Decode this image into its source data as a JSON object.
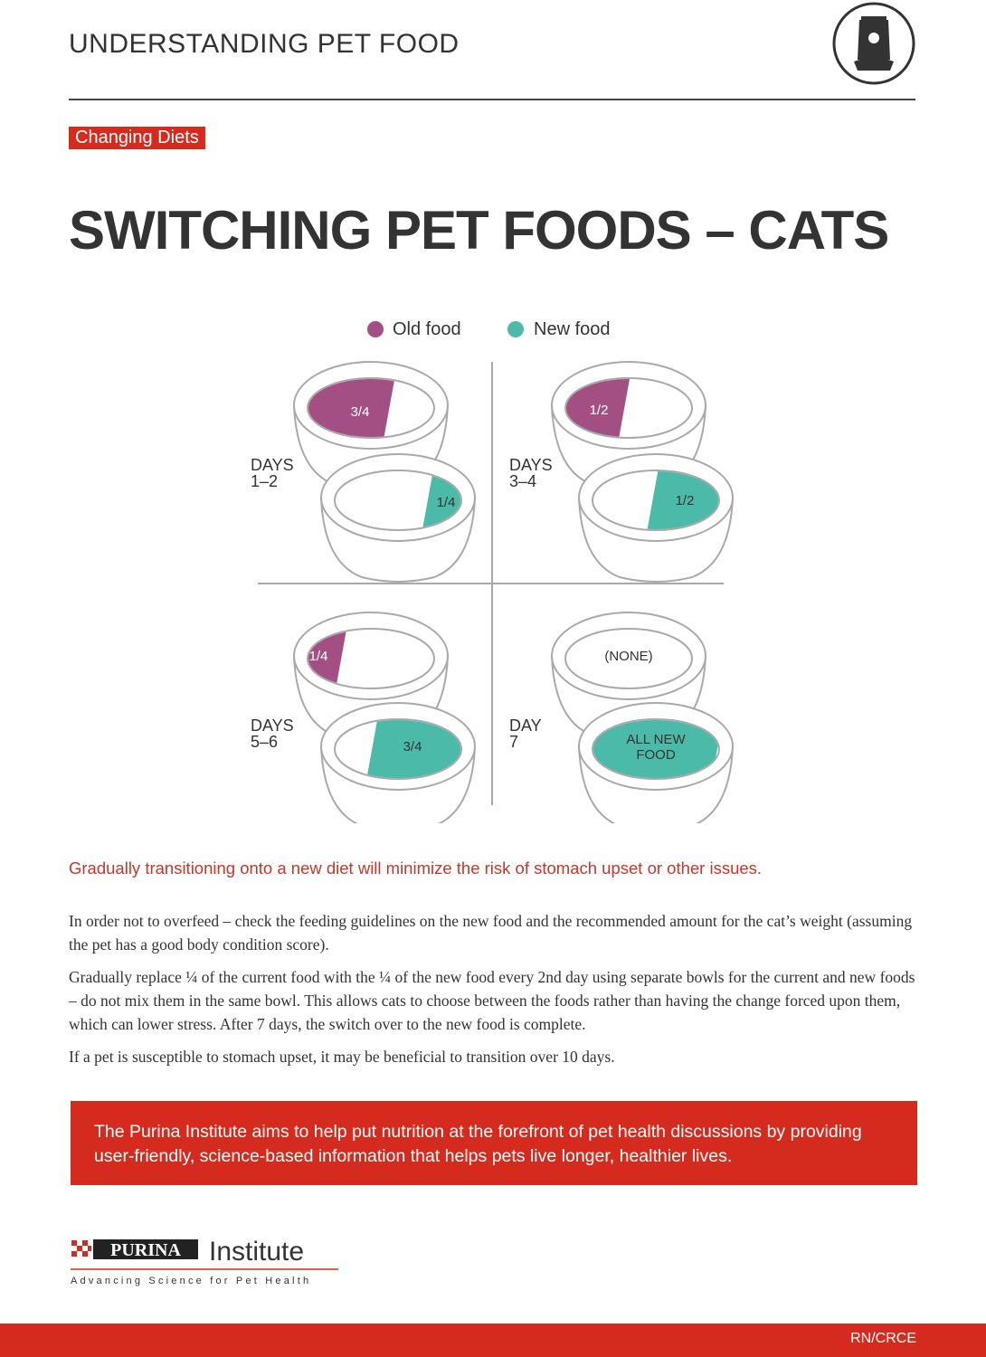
{
  "header": {
    "title": "UNDERSTANDING PET FOOD"
  },
  "tag": "Changing Diets",
  "title": "SWITCHING PET FOODS – CATS",
  "legend": {
    "old": "Old food",
    "new": "New food"
  },
  "panels": [
    {
      "days": [
        "DAYS",
        "1–2"
      ],
      "old": [
        "3/4"
      ],
      "new": [
        "1/4"
      ]
    },
    {
      "days": [
        "DAYS",
        "3–4"
      ],
      "old": [
        "1/2"
      ],
      "new": [
        "1/2"
      ]
    },
    {
      "days": [
        "DAYS",
        "5–6"
      ],
      "old": [
        "1/4"
      ],
      "new": [
        "3/4"
      ]
    },
    {
      "days": [
        "DAY",
        "7"
      ],
      "old": [
        "(NONE)"
      ],
      "new": [
        "ALL NEW",
        "FOOD"
      ]
    }
  ],
  "highlight": "Gradually transitioning onto a new diet will minimize the risk of stomach upset or other issues.",
  "paragraphs": [
    "In order not to overfeed – check the feeding guidelines on the new food and the recommended amount for the cat’s weight (assuming the pet has a good body condition score).",
    "Gradually replace ¼ of the current food with the ¼ of the new food every 2nd day using separate bowls for the current and new foods – do not mix them in the same bowl. This allows cats to choose between the foods rather than having the change forced upon them, which can lower stress. After 7 days, the switch over to the new food is complete.",
    "If a pet is susceptible to stomach upset, it may be beneficial to transition over 10 days."
  ],
  "banner": "The Purina Institute aims to help put nutrition at the forefront of pet health discussions by providing user-friendly, science-based information that helps pets live longer, healthier lives.",
  "logo": {
    "brand": "PURINA",
    "name": "Institute",
    "tagline": "Advancing Science for Pet Health"
  },
  "footer": "RN/CRCE"
}
